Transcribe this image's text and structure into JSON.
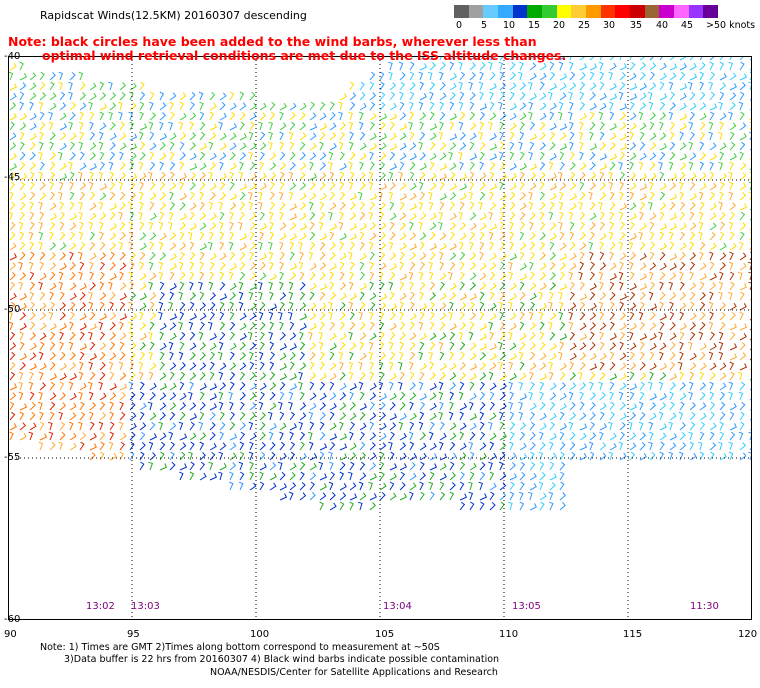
{
  "title": "Rapidscat Winds(12.5KM) 20160307 descending",
  "note": {
    "line1": "Note: black circles have been added to the wind barbs, wherever less than",
    "line2": "optimal wind retrieval conditions are met due to the ISS altitude changes."
  },
  "color_scale": {
    "labels": [
      "0",
      "5",
      "10",
      "15",
      "20",
      "25",
      "30",
      "35",
      "40",
      "45",
      ">50 knots"
    ],
    "colors": [
      "#606060",
      "#a0a0a0",
      "#66ccff",
      "#33aaff",
      "#0033cc",
      "#00aa00",
      "#33cc33",
      "#ffff00",
      "#ffcc33",
      "#ff9900",
      "#ff3300",
      "#ff0000",
      "#cc0000",
      "#996633",
      "#cc00cc",
      "#ff66ff",
      "#9933ff",
      "#660099"
    ]
  },
  "axes": {
    "lat_labels": [
      "-40",
      "-45",
      "-50",
      "-55",
      "-60"
    ],
    "lon_labels": [
      "90",
      "95",
      "100",
      "105",
      "110",
      "115",
      "120"
    ]
  },
  "times": [
    "13:02",
    "13:03",
    "13:04",
    "13:05",
    "11:30"
  ],
  "footer": {
    "line1": "Note: 1) Times are GMT 2)Times along bottom correspond to measurement at ~50S",
    "line2": "3)Data buffer is 22 hrs from 20160307 4) Black wind barbs indicate possible contamination",
    "line3": "NOAA/NESDIS/Center for Satellite Applications and Research"
  }
}
